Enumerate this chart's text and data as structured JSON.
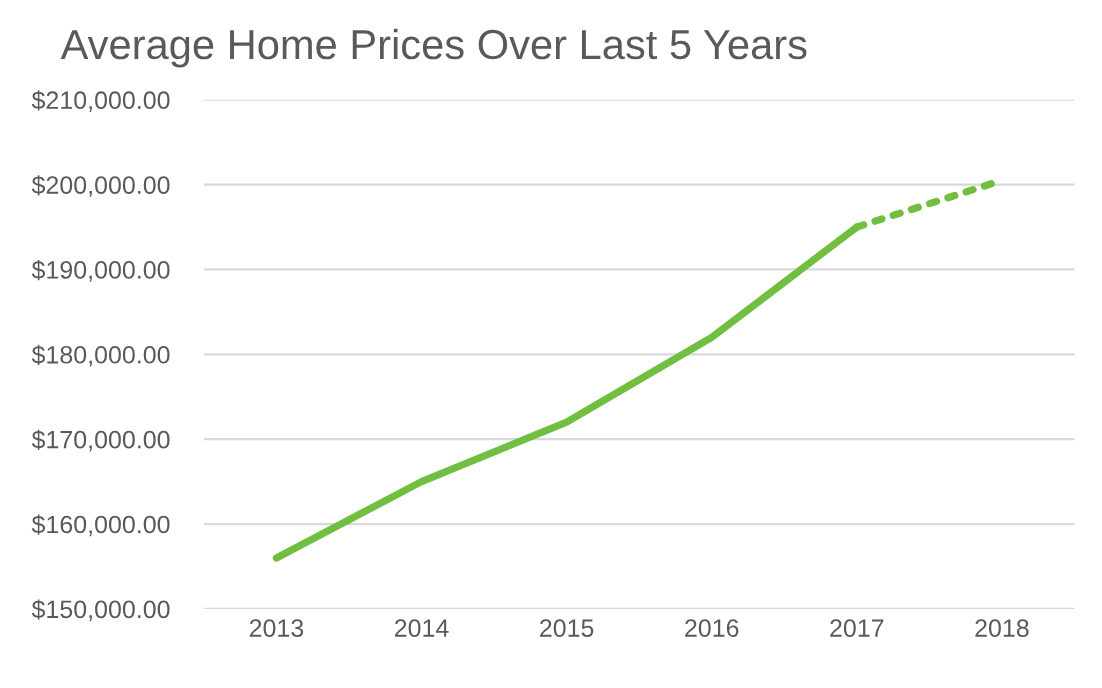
{
  "chart_data": {
    "type": "line",
    "title": "Average Home Prices Over Last 5 Years",
    "categories": [
      "2013",
      "2014",
      "2015",
      "2016",
      "2017",
      "2018"
    ],
    "series": [
      {
        "color": "#70bf41",
        "line_style": "solid",
        "values": [
          156000,
          165000,
          172000,
          182000,
          195000,
          null
        ]
      },
      {
        "color": "#70bf41",
        "line_style": "dotted",
        "values": [
          null,
          null,
          null,
          null,
          195000,
          200500
        ]
      }
    ],
    "ylim": [
      150000,
      210000
    ],
    "yticks": [
      {
        "value": 150000,
        "label": "$150,000.00"
      },
      {
        "value": 160000,
        "label": "$160,000.00"
      },
      {
        "value": 170000,
        "label": "$170,000.00"
      },
      {
        "value": 180000,
        "label": "$180,000.00"
      },
      {
        "value": 190000,
        "label": "$190,000.00"
      },
      {
        "value": 200000,
        "label": "$200,000.00"
      },
      {
        "value": 210000,
        "label": "$210,000.00"
      }
    ],
    "grid": "y",
    "legend": false,
    "marker": "none"
  }
}
